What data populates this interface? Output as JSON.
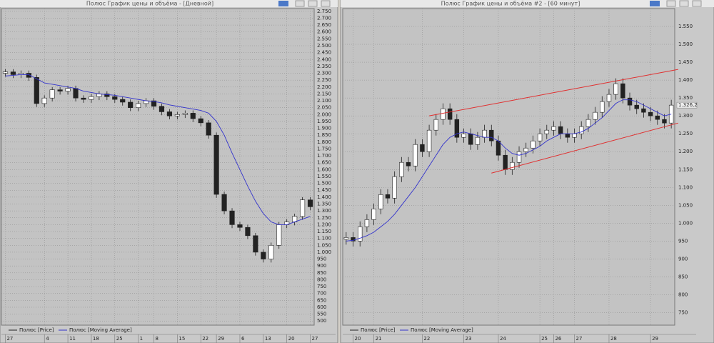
{
  "chart_data": [
    {
      "type": "candlestick",
      "window_title": "Полюс График цены и объёма - [Дневной]",
      "ylim": [
        470,
        2770
      ],
      "yticks": [
        500,
        550,
        600,
        650,
        700,
        750,
        800,
        850,
        900,
        950,
        {
          "value": 1000,
          "label": "1.000"
        },
        {
          "value": 1050,
          "label": "1.050"
        },
        {
          "value": 1100,
          "label": "1.100"
        },
        {
          "value": 1150,
          "label": "1.150"
        },
        {
          "value": 1200,
          "label": "1.200"
        },
        {
          "value": 1250,
          "label": "1.250"
        },
        {
          "value": 1300,
          "label": "1.300"
        },
        {
          "value": 1350,
          "label": "1.350"
        },
        {
          "value": 1400,
          "label": "1.400"
        },
        {
          "value": 1450,
          "label": "1.450"
        },
        {
          "value": 1500,
          "label": "1.500"
        },
        {
          "value": 1550,
          "label": "1.550"
        },
        {
          "value": 1600,
          "label": "1.600"
        },
        {
          "value": 1650,
          "label": "1.650"
        },
        {
          "value": 1700,
          "label": "1.700"
        },
        {
          "value": 1750,
          "label": "1.750"
        },
        {
          "value": 1800,
          "label": "1.800"
        },
        {
          "value": 1850,
          "label": "1.850"
        },
        {
          "value": 1900,
          "label": "1.900"
        },
        {
          "value": 1950,
          "label": "1.950"
        },
        {
          "value": 2000,
          "label": "2.000"
        },
        {
          "value": 2050,
          "label": "2.050"
        },
        {
          "value": 2100,
          "label": "2.100"
        },
        {
          "value": 2150,
          "label": "2.150"
        },
        {
          "value": 2200,
          "label": "2.200"
        },
        {
          "value": 2250,
          "label": "2.250"
        },
        {
          "value": 2300,
          "label": "2.300"
        },
        {
          "value": 2350,
          "label": "2.350"
        },
        {
          "value": 2400,
          "label": "2.400"
        },
        {
          "value": 2450,
          "label": "2.450"
        },
        {
          "value": 2500,
          "label": "2.500"
        },
        {
          "value": 2550,
          "label": "2.550"
        },
        {
          "value": 2600,
          "label": "2.600"
        },
        {
          "value": 2650,
          "label": "2.650"
        },
        {
          "value": 2700,
          "label": "2.700"
        },
        {
          "value": 2750,
          "label": "2.750"
        }
      ],
      "xticks": [
        {
          "value": 0,
          "label": "27"
        },
        {
          "value": 5,
          "label": "4"
        },
        {
          "value": 8,
          "label": "11"
        },
        {
          "value": 11,
          "label": "18"
        },
        {
          "value": 14,
          "label": "25"
        },
        {
          "value": 17,
          "label": "1"
        },
        {
          "value": 19,
          "label": "8"
        },
        {
          "value": 22,
          "label": "15"
        },
        {
          "value": 25,
          "label": "22"
        },
        {
          "value": 27,
          "label": "29"
        },
        {
          "value": 30,
          "label": "6"
        },
        {
          "value": 33,
          "label": "13"
        },
        {
          "value": 36,
          "label": "20"
        },
        {
          "value": 39,
          "label": "27"
        }
      ],
      "grid": true,
      "series": [
        {
          "name": "Полюс [Price]",
          "color": "#222222",
          "open": [
            2300,
            2310,
            2290,
            2300,
            2270,
            2080,
            2120,
            2180,
            2170,
            2190,
            2120,
            2110,
            2130,
            2150,
            2130,
            2110,
            2090,
            2050,
            2080,
            2100,
            2060,
            2020,
            1990,
            2000,
            2010,
            1970,
            1940,
            1850,
            1420,
            1300,
            1200,
            1180,
            1120,
            1000,
            950,
            1050,
            1200,
            1220,
            1260,
            1380
          ],
          "high": [
            2330,
            2330,
            2320,
            2320,
            2290,
            2140,
            2200,
            2200,
            2210,
            2210,
            2140,
            2150,
            2170,
            2170,
            2150,
            2130,
            2110,
            2100,
            2120,
            2120,
            2080,
            2040,
            2020,
            2030,
            2030,
            1990,
            1960,
            1870,
            1440,
            1320,
            1220,
            1200,
            1140,
            1020,
            1070,
            1220,
            1240,
            1280,
            1400,
            1400
          ],
          "low": [
            2275,
            2265,
            2265,
            2245,
            2055,
            2055,
            2095,
            2145,
            2145,
            2095,
            2085,
            2085,
            2105,
            2105,
            2085,
            2065,
            2025,
            2025,
            2055,
            2035,
            1995,
            1965,
            1965,
            1975,
            1945,
            1915,
            1825,
            1395,
            1275,
            1175,
            1155,
            1095,
            975,
            925,
            925,
            1025,
            1175,
            1195,
            1235,
            1305
          ],
          "close": [
            2310,
            2290,
            2300,
            2270,
            2080,
            2120,
            2180,
            2170,
            2190,
            2120,
            2110,
            2130,
            2150,
            2130,
            2110,
            2090,
            2050,
            2080,
            2100,
            2060,
            2020,
            1990,
            2000,
            2010,
            1970,
            1940,
            1850,
            1420,
            1300,
            1200,
            1180,
            1120,
            1000,
            950,
            1050,
            1200,
            1220,
            1260,
            1380,
            1330
          ]
        },
        {
          "name": "Полюс [Moving Average]",
          "color": "#3333cc",
          "values": [
            2280,
            2285,
            2290,
            2290,
            2260,
            2230,
            2220,
            2210,
            2200,
            2190,
            2170,
            2160,
            2150,
            2145,
            2140,
            2130,
            2120,
            2110,
            2100,
            2095,
            2085,
            2070,
            2060,
            2050,
            2040,
            2030,
            2010,
            1950,
            1850,
            1720,
            1600,
            1480,
            1370,
            1280,
            1220,
            1200,
            1200,
            1220,
            1240,
            1260
          ]
        }
      ]
    },
    {
      "type": "candlestick",
      "window_title": "Полюс График цены и объёма #2 - [60 минут]",
      "ylim": [
        715,
        1600
      ],
      "yticks": [
        750,
        800,
        850,
        900,
        950,
        {
          "value": 1000,
          "label": "1.000"
        },
        {
          "value": 1050,
          "label": "1.050"
        },
        {
          "value": 1100,
          "label": "1.100"
        },
        {
          "value": 1150,
          "label": "1.150"
        },
        {
          "value": 1200,
          "label": "1.200"
        },
        {
          "value": 1250,
          "label": "1.250"
        },
        {
          "value": 1300,
          "label": "1.300"
        },
        {
          "value": 1350,
          "label": "1.350"
        },
        {
          "value": 1400,
          "label": "1.400"
        },
        {
          "value": 1450,
          "label": "1.450"
        },
        {
          "value": 1500,
          "label": "1.500"
        },
        {
          "value": 1550,
          "label": "1.550"
        }
      ],
      "xticks": [
        {
          "value": 1,
          "label": "20"
        },
        {
          "value": 4,
          "label": "21"
        },
        {
          "value": 11,
          "label": "22"
        },
        {
          "value": 17,
          "label": "23"
        },
        {
          "value": 22,
          "label": "24"
        },
        {
          "value": 28,
          "label": "25"
        },
        {
          "value": 30,
          "label": "26"
        },
        {
          "value": 33,
          "label": "27"
        },
        {
          "value": 38,
          "label": "28"
        },
        {
          "value": 44,
          "label": "29"
        }
      ],
      "grid": true,
      "last_label": "1.326,2",
      "series": [
        {
          "name": "Полюс [Price]",
          "color": "#222222",
          "open": [
            955,
            960,
            950,
            990,
            1010,
            1040,
            1080,
            1070,
            1130,
            1170,
            1160,
            1220,
            1200,
            1260,
            1290,
            1320,
            1290,
            1240,
            1250,
            1220,
            1240,
            1260,
            1230,
            1190,
            1150,
            1170,
            1200,
            1210,
            1230,
            1250,
            1260,
            1270,
            1250,
            1240,
            1250,
            1270,
            1290,
            1310,
            1340,
            1360,
            1390,
            1350,
            1330,
            1320,
            1310,
            1300,
            1290,
            1280
          ],
          "high": [
            975,
            975,
            1005,
            1025,
            1055,
            1095,
            1095,
            1145,
            1185,
            1185,
            1235,
            1235,
            1275,
            1305,
            1335,
            1335,
            1305,
            1265,
            1265,
            1255,
            1275,
            1275,
            1245,
            1205,
            1185,
            1215,
            1225,
            1245,
            1265,
            1275,
            1285,
            1285,
            1265,
            1265,
            1285,
            1305,
            1325,
            1355,
            1375,
            1405,
            1405,
            1365,
            1345,
            1335,
            1325,
            1315,
            1305,
            1345
          ],
          "low": [
            940,
            935,
            935,
            975,
            995,
            1025,
            1055,
            1055,
            1115,
            1145,
            1145,
            1185,
            1185,
            1245,
            1275,
            1275,
            1225,
            1225,
            1205,
            1205,
            1225,
            1215,
            1175,
            1135,
            1135,
            1155,
            1185,
            1195,
            1215,
            1235,
            1245,
            1235,
            1225,
            1225,
            1235,
            1255,
            1275,
            1295,
            1325,
            1345,
            1335,
            1315,
            1305,
            1295,
            1285,
            1275,
            1265,
            1265
          ],
          "close": [
            960,
            950,
            990,
            1010,
            1040,
            1080,
            1070,
            1130,
            1170,
            1160,
            1220,
            1200,
            1260,
            1290,
            1320,
            1290,
            1240,
            1250,
            1220,
            1240,
            1260,
            1230,
            1190,
            1150,
            1170,
            1200,
            1210,
            1230,
            1250,
            1260,
            1270,
            1250,
            1240,
            1250,
            1270,
            1290,
            1310,
            1340,
            1360,
            1390,
            1350,
            1330,
            1320,
            1310,
            1300,
            1290,
            1280,
            1330
          ]
        },
        {
          "name": "Полюс [Moving Average]",
          "color": "#3333cc",
          "values": [
            950,
            952,
            958,
            965,
            975,
            990,
            1005,
            1025,
            1050,
            1075,
            1100,
            1130,
            1160,
            1190,
            1220,
            1240,
            1250,
            1255,
            1250,
            1245,
            1240,
            1240,
            1230,
            1210,
            1195,
            1190,
            1195,
            1205,
            1215,
            1230,
            1240,
            1250,
            1250,
            1250,
            1255,
            1265,
            1280,
            1295,
            1315,
            1335,
            1345,
            1345,
            1340,
            1330,
            1320,
            1310,
            1300,
            1305
          ]
        }
      ],
      "trend_lines": [
        {
          "color": "#e03030",
          "x": [
            12,
            48
          ],
          "values": [
            1300,
            1430
          ]
        },
        {
          "color": "#e03030",
          "x": [
            21,
            48
          ],
          "values": [
            1140,
            1280
          ]
        }
      ]
    }
  ]
}
